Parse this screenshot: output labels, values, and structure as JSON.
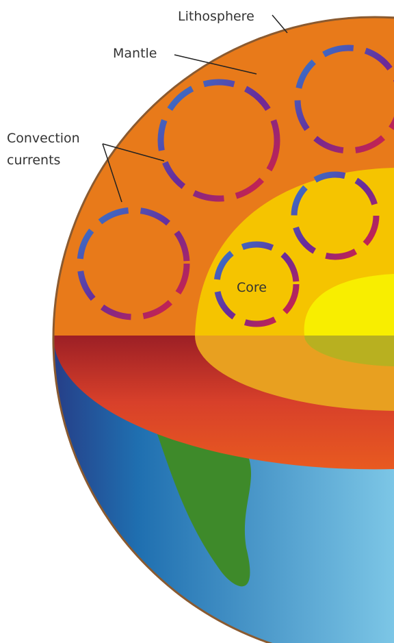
{
  "labels": {
    "lithosphere": "Lithosphere",
    "mantle": "Mantle",
    "convection_line1": "Convection",
    "convection_line2": "currents",
    "core": "Core"
  }
}
